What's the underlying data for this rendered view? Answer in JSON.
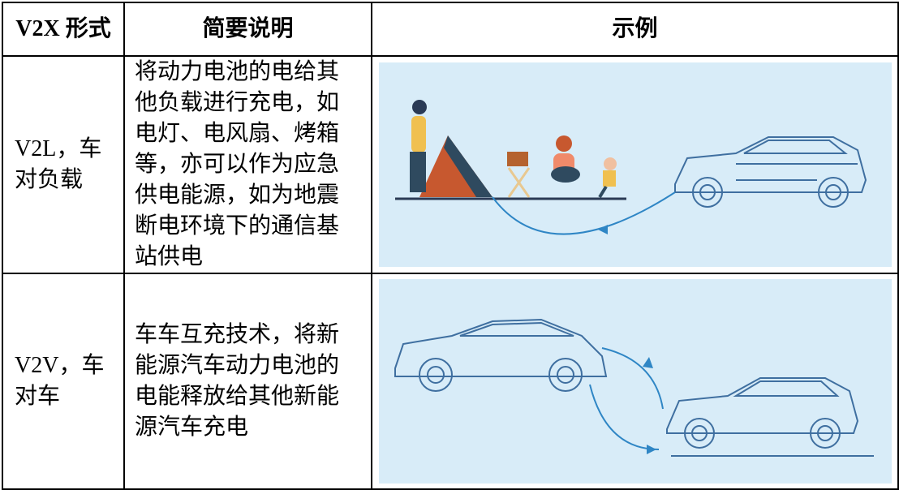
{
  "table": {
    "header": [
      "V2X 形式",
      "简要说明",
      "示例"
    ],
    "rows": [
      [
        "V2L，车对负载",
        "将动力电池的电给其他负载进行充电，如电灯、电风扇、烤箱等，亦可以作为应急供电能源，如为地震断电环境下的通信基站供电"
      ],
      [
        "V2V，车对车",
        "车车互充技术，将新能源汽车动力电池的电能释放给其他新能源汽车充电"
      ]
    ]
  }
}
